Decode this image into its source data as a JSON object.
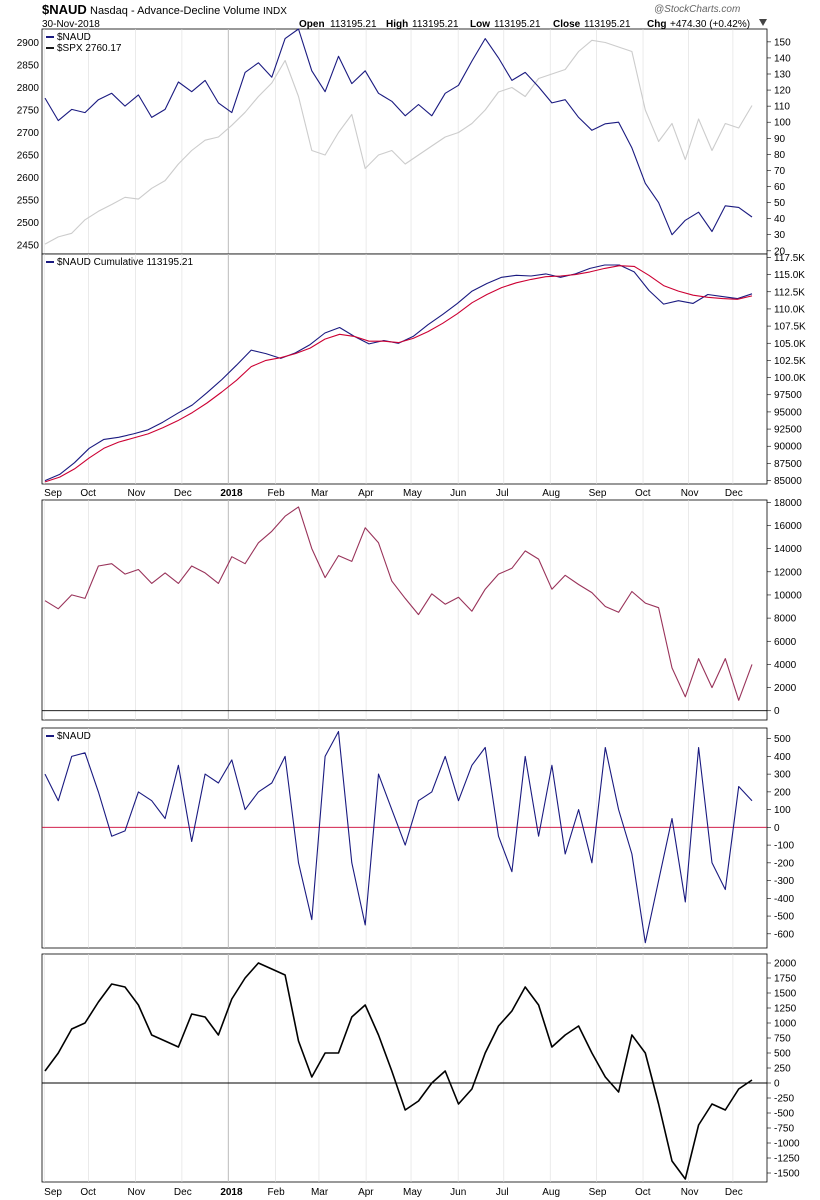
{
  "header": {
    "symbol": "$NAUD",
    "name": "Nasdaq - Advance-Decline Volume",
    "exchange": "INDX",
    "date": "30-Nov-2018",
    "open_label": "Open",
    "open": "113195.21",
    "high_label": "High",
    "high": "113195.21",
    "low_label": "Low",
    "low": "113195.21",
    "close_label": "Close",
    "close": "113195.21",
    "chg_label": "Chg",
    "chg": "+474.30 (+0.42%)",
    "chg_icon": "down-triangle-icon",
    "watermark": "@StockCharts.com"
  },
  "x_labels": [
    "Sep",
    "Oct",
    "Nov",
    "Dec",
    "2018",
    "Feb",
    "Mar",
    "Apr",
    "May",
    "Jun",
    "Jul",
    "Aug",
    "Sep",
    "Oct",
    "Nov",
    "Dec"
  ],
  "colors": {
    "navy": "#1a1a80",
    "crimson": "#cc0033",
    "spx_gray": "#cccccc",
    "maroon": "#99335a",
    "black": "#000000",
    "grid": "#dddddd"
  },
  "chart_data": [
    {
      "type": "line",
      "legend": [
        {
          "label": "$NAUD",
          "color": "#1a1a80"
        },
        {
          "label": "$SPX 2760.17",
          "color": "#1a1a1a"
        }
      ],
      "left_axis": {
        "ticks": [
          "2900",
          "2850",
          "2800",
          "2750",
          "2700",
          "2650",
          "2600",
          "2550",
          "2500",
          "2450"
        ],
        "ylim": [
          2430,
          2930
        ]
      },
      "right_axis": {
        "ticks": [
          "150",
          "140",
          "130",
          "120",
          "110",
          "100",
          "90",
          "80",
          "70",
          "60",
          "50",
          "40",
          "30",
          "20"
        ],
        "ylim": [
          18,
          158
        ]
      },
      "series": [
        {
          "axis": "right",
          "color": "#1a1a80",
          "values": [
            115,
            101,
            108,
            106,
            114,
            118,
            110,
            117,
            103,
            108,
            125,
            119,
            126,
            112,
            106,
            131,
            137,
            128,
            152,
            158,
            132,
            119,
            141,
            124,
            132,
            118,
            113,
            104,
            111,
            104,
            118,
            123,
            138,
            152,
            140,
            126,
            131,
            122,
            112,
            114,
            103,
            95,
            99,
            100,
            84,
            62,
            50,
            30,
            39,
            44,
            32,
            48,
            47,
            41
          ]
        },
        {
          "axis": "left",
          "color": "#cccccc",
          "values": [
            2452,
            2468,
            2476,
            2506,
            2525,
            2540,
            2556,
            2552,
            2576,
            2593,
            2630,
            2660,
            2683,
            2690,
            2716,
            2745,
            2780,
            2810,
            2860,
            2780,
            2660,
            2650,
            2700,
            2740,
            2620,
            2650,
            2660,
            2630,
            2650,
            2670,
            2690,
            2700,
            2720,
            2750,
            2790,
            2800,
            2780,
            2820,
            2830,
            2840,
            2880,
            2905,
            2900,
            2890,
            2880,
            2750,
            2680,
            2720,
            2640,
            2730,
            2660,
            2720,
            2710,
            2760
          ]
        }
      ]
    },
    {
      "type": "line",
      "legend": [
        {
          "label": "$NAUD Cumulative 113195.21",
          "color": "#1a1a80"
        }
      ],
      "right_axis": {
        "ticks": [
          "117.5K",
          "115.0K",
          "112.5K",
          "110.0K",
          "107.5K",
          "105.0K",
          "102.5K",
          "100.0K",
          "97500",
          "95000",
          "92500",
          "90000",
          "87500",
          "85000"
        ],
        "ylim": [
          84500,
          118000
        ]
      },
      "series": [
        {
          "color": "#1a1a80",
          "values": [
            85000,
            85900,
            87600,
            89700,
            91000,
            91300,
            91800,
            92400,
            93500,
            94800,
            96000,
            97800,
            99700,
            101800,
            104000,
            103500,
            102800,
            103600,
            104800,
            106500,
            107300,
            106000,
            104900,
            105400,
            105000,
            106000,
            107700,
            109200,
            110800,
            112600,
            113700,
            114600,
            114900,
            114800,
            115100,
            114600,
            115100,
            115900,
            116400,
            116400,
            115400,
            112700,
            110700,
            111200,
            110800,
            112100,
            111800,
            111500,
            112200
          ]
        },
        {
          "color": "#cc0033",
          "values": [
            84800,
            85500,
            86700,
            88300,
            89700,
            90600,
            91200,
            91800,
            92700,
            93700,
            94900,
            96300,
            97900,
            99600,
            101600,
            102500,
            102900,
            103500,
            104300,
            105600,
            106300,
            106000,
            105300,
            105300,
            105100,
            105700,
            106700,
            107900,
            109300,
            110900,
            112100,
            113100,
            113800,
            114300,
            114700,
            114800,
            115000,
            115400,
            115900,
            116300,
            116200,
            114900,
            113400,
            112600,
            112000,
            111700,
            111500,
            111400,
            111900
          ]
        }
      ]
    },
    {
      "type": "line",
      "right_axis": {
        "ticks": [
          "18000",
          "16000",
          "14000",
          "12000",
          "10000",
          "8000",
          "6000",
          "4000",
          "2000",
          "0"
        ],
        "ylim": [
          -800,
          18200
        ]
      },
      "series": [
        {
          "color": "#99335a",
          "values": [
            9500,
            8800,
            10000,
            9700,
            12500,
            12700,
            11800,
            12200,
            11000,
            11900,
            11000,
            12500,
            11900,
            11000,
            13300,
            12700,
            14500,
            15500,
            16800,
            17600,
            14000,
            11500,
            13400,
            12900,
            15800,
            14500,
            11200,
            9700,
            8300,
            10100,
            9200,
            9800,
            8600,
            10500,
            11800,
            12300,
            13800,
            13100,
            10500,
            11700,
            10900,
            10200,
            9000,
            8500,
            10300,
            9300,
            8900,
            3700,
            1200,
            4500,
            2000,
            4500,
            900,
            4000
          ]
        }
      ],
      "reference_line": 0
    },
    {
      "type": "line",
      "legend": [
        {
          "label": "$NAUD",
          "color": "#1a1a80"
        }
      ],
      "right_axis": {
        "ticks": [
          "500",
          "400",
          "300",
          "200",
          "100",
          "0",
          "-100",
          "-200",
          "-300",
          "-400",
          "-500",
          "-600"
        ],
        "ylim": [
          -680,
          560
        ]
      },
      "series": [
        {
          "color": "#1a1a80",
          "values": [
            300,
            150,
            400,
            420,
            200,
            -50,
            -20,
            200,
            150,
            50,
            350,
            -80,
            300,
            250,
            380,
            100,
            200,
            250,
            400,
            -200,
            -520,
            400,
            540,
            -200,
            -550,
            300,
            100,
            -100,
            150,
            200,
            400,
            150,
            350,
            450,
            -50,
            -250,
            400,
            -50,
            350,
            -150,
            100,
            -200,
            450,
            100,
            -150,
            -650,
            -300,
            50,
            -420,
            450,
            -200,
            -350,
            230,
            150
          ]
        }
      ],
      "reference_line": 0
    },
    {
      "type": "line",
      "right_axis": {
        "ticks": [
          "2000",
          "1750",
          "1500",
          "1250",
          "1000",
          "750",
          "500",
          "250",
          "0",
          "-250",
          "-500",
          "-750",
          "-1000",
          "-1250",
          "-1500"
        ],
        "ylim": [
          -1650,
          2150
        ]
      },
      "series": [
        {
          "color": "#000000",
          "values": [
            200,
            500,
            900,
            1000,
            1350,
            1650,
            1600,
            1300,
            800,
            700,
            600,
            1150,
            1100,
            800,
            1400,
            1750,
            2000,
            1900,
            1800,
            700,
            100,
            500,
            500,
            1100,
            1300,
            800,
            200,
            -450,
            -300,
            0,
            200,
            -350,
            -100,
            500,
            950,
            1200,
            1600,
            1300,
            600,
            800,
            950,
            500,
            100,
            -150,
            800,
            500,
            -350,
            -1300,
            -1600,
            -700,
            -350,
            -450,
            -100,
            50
          ]
        }
      ],
      "reference_line": 0
    }
  ]
}
